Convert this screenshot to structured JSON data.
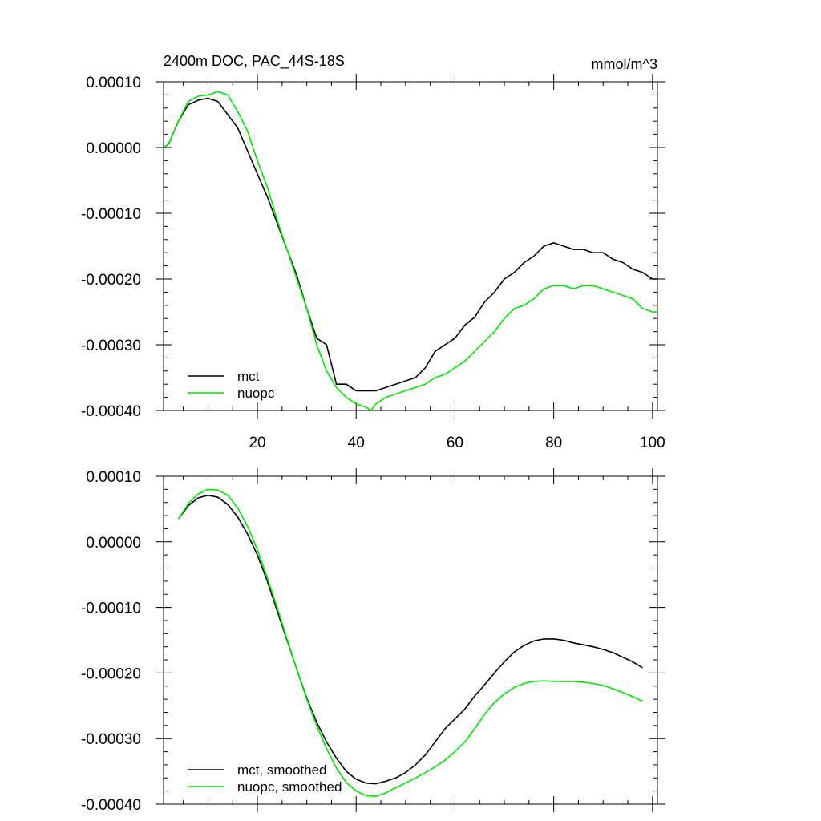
{
  "chart_data": [
    {
      "type": "line",
      "title": "2400m DOC, PAC_44S-18S",
      "units": "mmol/m^3",
      "xlim": [
        1,
        101
      ],
      "ylim": [
        -0.0004,
        0.0001
      ],
      "xticks": [
        20,
        40,
        60,
        80,
        100
      ],
      "xtick_labels": [
        "20",
        "40",
        "60",
        "80",
        "100"
      ],
      "yticks": [
        0.0001,
        0.0,
        -0.0001,
        -0.0002,
        -0.0003,
        -0.0004
      ],
      "ytick_labels": [
        "0.00010",
        "0.00000",
        "-0.00010",
        "-0.00020",
        "-0.00030",
        "-0.00040"
      ],
      "legend_position": "bottom-left",
      "series": [
        {
          "name": "mct",
          "color": "#000000",
          "x": [
            1,
            2,
            4,
            6,
            8,
            10,
            12,
            14,
            16,
            18,
            20,
            22,
            24,
            26,
            28,
            30,
            32,
            34,
            36,
            38,
            40,
            42,
            44,
            46,
            48,
            50,
            52,
            54,
            56,
            58,
            60,
            62,
            64,
            66,
            68,
            70,
            72,
            74,
            76,
            78,
            80,
            82,
            84,
            86,
            88,
            90,
            92,
            94,
            96,
            98,
            100,
            101
          ],
          "y": [
            0.0,
            5e-06,
            4e-05,
            6.5e-05,
            7.2e-05,
            7.5e-05,
            7e-05,
            5e-05,
            3e-05,
            -5e-06,
            -4e-05,
            -7.5e-05,
            -0.000115,
            -0.000155,
            -0.000195,
            -0.000245,
            -0.00029,
            -0.0003,
            -0.00036,
            -0.00036,
            -0.00037,
            -0.00037,
            -0.00037,
            -0.000365,
            -0.00036,
            -0.000355,
            -0.00035,
            -0.000335,
            -0.00031,
            -0.0003,
            -0.00029,
            -0.00027,
            -0.000258,
            -0.000235,
            -0.00022,
            -0.0002,
            -0.00019,
            -0.000175,
            -0.000165,
            -0.00015,
            -0.000145,
            -0.00015,
            -0.000155,
            -0.000155,
            -0.00016,
            -0.00016,
            -0.00017,
            -0.000175,
            -0.000185,
            -0.00019,
            -0.0002,
            -0.0002
          ]
        },
        {
          "name": "nuopc",
          "color": "#00e600",
          "x": [
            1,
            2,
            4,
            6,
            8,
            10,
            12,
            14,
            16,
            18,
            20,
            22,
            24,
            26,
            28,
            30,
            32,
            34,
            36,
            38,
            40,
            42,
            43,
            44,
            46,
            48,
            50,
            52,
            54,
            56,
            58,
            60,
            62,
            64,
            66,
            68,
            70,
            72,
            74,
            76,
            78,
            80,
            82,
            84,
            86,
            88,
            90,
            92,
            94,
            96,
            98,
            100,
            101
          ],
          "y": [
            0.0,
            5e-06,
            4e-05,
            7e-05,
            7.8e-05,
            8e-05,
            8.5e-05,
            8e-05,
            5.5e-05,
            2.5e-05,
            -2e-05,
            -6e-05,
            -0.00011,
            -0.000155,
            -0.0002,
            -0.000245,
            -0.0003,
            -0.00034,
            -0.000365,
            -0.00038,
            -0.00039,
            -0.000395,
            -0.0004,
            -0.00039,
            -0.00038,
            -0.000375,
            -0.00037,
            -0.000365,
            -0.00036,
            -0.00035,
            -0.000345,
            -0.000335,
            -0.000325,
            -0.00031,
            -0.000295,
            -0.00028,
            -0.00026,
            -0.000245,
            -0.00024,
            -0.00023,
            -0.000215,
            -0.00021,
            -0.00021,
            -0.000215,
            -0.00021,
            -0.00021,
            -0.000215,
            -0.00022,
            -0.000225,
            -0.00023,
            -0.000245,
            -0.00025,
            -0.00025
          ]
        }
      ]
    },
    {
      "type": "line",
      "xlim": [
        1,
        101
      ],
      "ylim": [
        -0.0004,
        0.0001
      ],
      "xticks": [
        20,
        40,
        60,
        80,
        100
      ],
      "xtick_labels": [],
      "yticks": [
        0.0001,
        0.0,
        -0.0001,
        -0.0002,
        -0.0003,
        -0.0004
      ],
      "ytick_labels": [
        "0.00010",
        "0.00000",
        "-0.00010",
        "-0.00020",
        "-0.00030",
        "-0.00040"
      ],
      "legend_position": "bottom-left",
      "series": [
        {
          "name": "mct, smoothed",
          "color": "#000000",
          "x": [
            4,
            6,
            8,
            10,
            12,
            14,
            16,
            18,
            20,
            22,
            24,
            26,
            28,
            30,
            32,
            34,
            36,
            38,
            40,
            42,
            44,
            46,
            48,
            50,
            52,
            54,
            56,
            58,
            60,
            62,
            64,
            66,
            68,
            70,
            72,
            74,
            76,
            78,
            80,
            82,
            84,
            86,
            88,
            90,
            92,
            94,
            96,
            98
          ],
          "y": [
            3.5e-05,
            5.5e-05,
            6.7e-05,
            7.1e-05,
            6.8e-05,
            5.7e-05,
            3.8e-05,
            1.2e-05,
            -2e-05,
            -6e-05,
            -0.000105,
            -0.00015,
            -0.000195,
            -0.000238,
            -0.000275,
            -0.000305,
            -0.00033,
            -0.00035,
            -0.000362,
            -0.000368,
            -0.000369,
            -0.000365,
            -0.00036,
            -0.000352,
            -0.00034,
            -0.000325,
            -0.000305,
            -0.000285,
            -0.00027,
            -0.000255,
            -0.000235,
            -0.000218,
            -0.0002,
            -0.000183,
            -0.000168,
            -0.000158,
            -0.000151,
            -0.000148,
            -0.000148,
            -0.00015,
            -0.000154,
            -0.000157,
            -0.00016,
            -0.000164,
            -0.000169,
            -0.000176,
            -0.000183,
            -0.000192
          ]
        },
        {
          "name": "nuopc, smoothed",
          "color": "#00e600",
          "x": [
            4,
            6,
            8,
            10,
            12,
            14,
            16,
            18,
            20,
            22,
            24,
            26,
            28,
            30,
            32,
            34,
            36,
            38,
            40,
            42,
            44,
            46,
            48,
            50,
            52,
            54,
            56,
            58,
            60,
            62,
            64,
            66,
            68,
            70,
            72,
            74,
            76,
            78,
            80,
            82,
            84,
            86,
            88,
            90,
            92,
            94,
            96,
            98
          ],
          "y": [
            3.5e-05,
            5.8e-05,
            7.3e-05,
            8e-05,
            7.9e-05,
            7.1e-05,
            5.2e-05,
            2.4e-05,
            -1.2e-05,
            -5.5e-05,
            -0.0001,
            -0.000148,
            -0.000195,
            -0.00024,
            -0.00028,
            -0.000315,
            -0.000345,
            -0.000367,
            -0.00038,
            -0.000387,
            -0.000388,
            -0.000383,
            -0.000375,
            -0.000368,
            -0.00036,
            -0.000352,
            -0.000343,
            -0.000333,
            -0.00032,
            -0.000305,
            -0.000285,
            -0.000263,
            -0.000245,
            -0.000232,
            -0.000222,
            -0.000216,
            -0.000213,
            -0.000212,
            -0.000213,
            -0.000213,
            -0.000213,
            -0.000214,
            -0.000216,
            -0.000219,
            -0.000224,
            -0.00023,
            -0.000236,
            -0.000243
          ]
        }
      ]
    }
  ]
}
